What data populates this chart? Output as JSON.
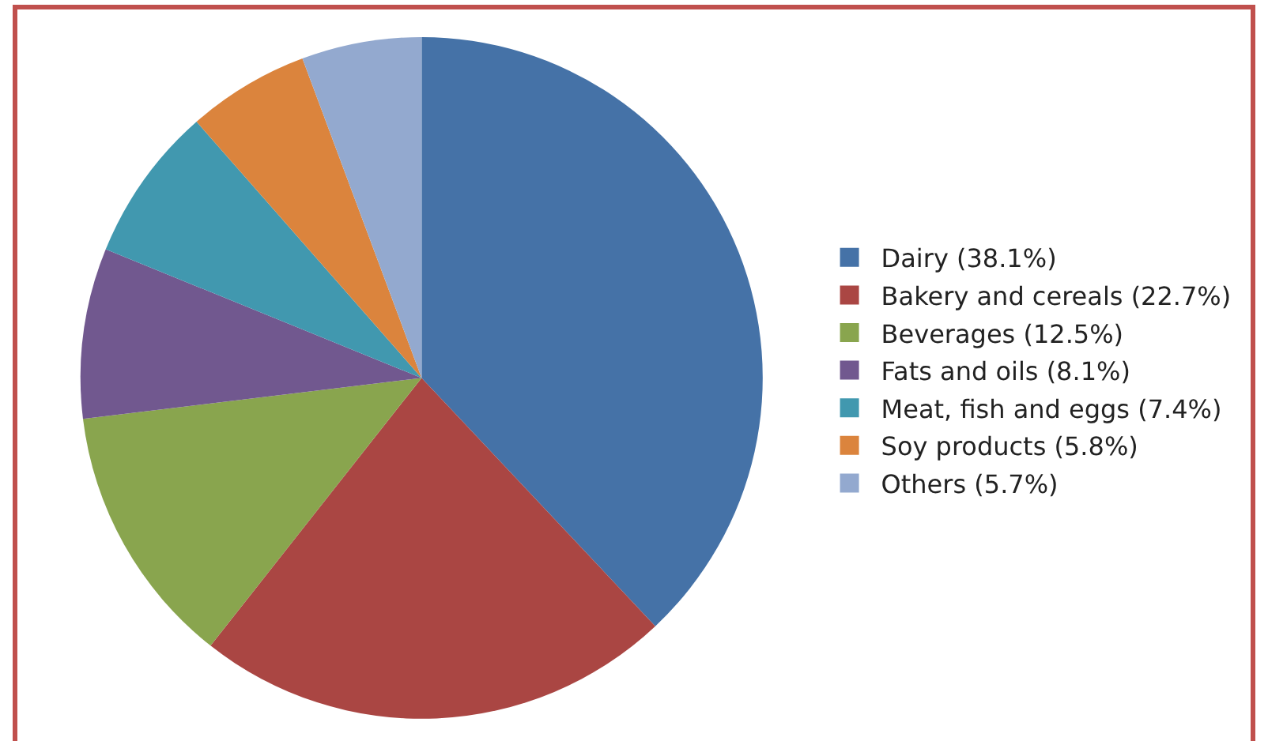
{
  "chart_data": {
    "type": "pie",
    "categories": [
      "Dairy (38.1%)",
      "Bakery and cereals (22.7%)",
      "Beverages (12.5%)",
      "Fats and oils (8.1%)",
      "Meat, fish and eggs (7.4%)",
      "Soy products (5.8%)",
      "Others (5.7%)"
    ],
    "values": [
      38.1,
      22.7,
      12.5,
      8.1,
      7.4,
      5.8,
      5.7
    ],
    "colors": [
      "#4572a7",
      "#aa4643",
      "#89a54e",
      "#71588f",
      "#4198af",
      "#db843d",
      "#93a9cf"
    ],
    "legend": "right"
  }
}
